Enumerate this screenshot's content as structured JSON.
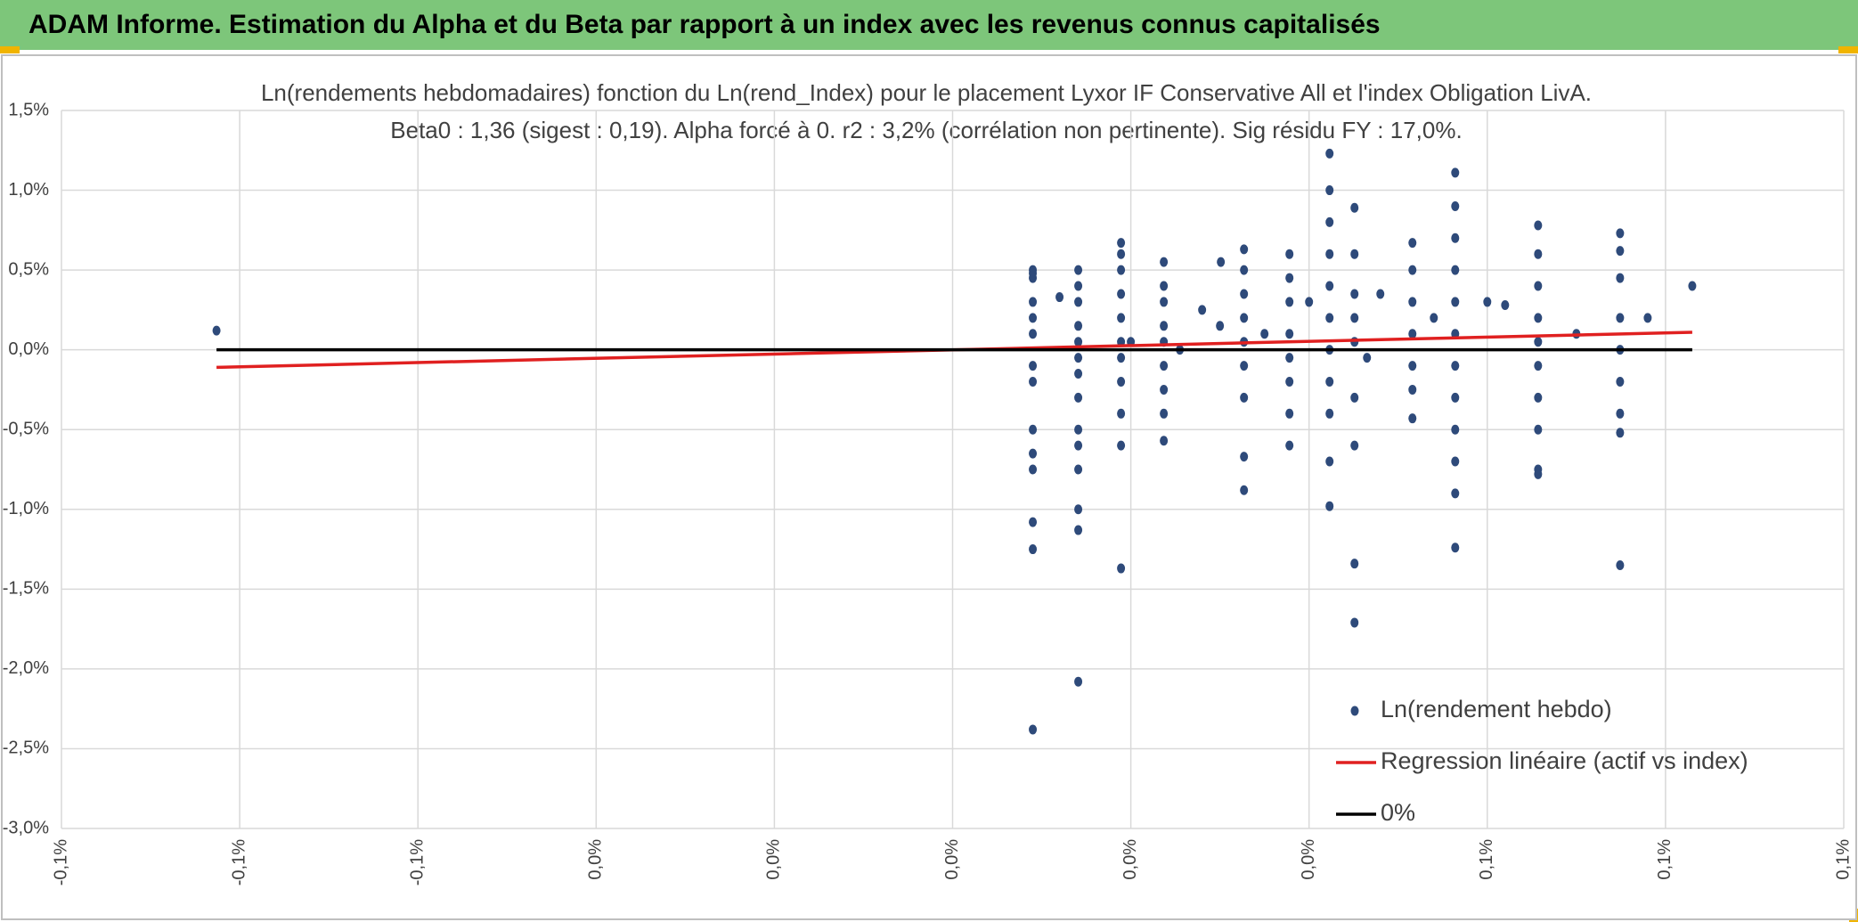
{
  "header": {
    "title": "ADAM Informe. Estimation du Alpha et du Beta par rapport à un index avec les revenus connus capitalisés"
  },
  "chart_data": {
    "type": "scatter",
    "title": "Ln(rendements hebdomadaires) fonction du Ln(rend_Index) pour le placement Lyxor IF Conservative All et l'index Obligation LivA.",
    "subtitle": "Beta0 : 1,36 (sigest : 0,19). Alpha forcé à 0. r2 : 3,2% (corrélation non pertinente). Sig résidu FY : 17,0%.",
    "xlim": [
      -0.1,
      0.1
    ],
    "xticks": [
      {
        "value": -0.1,
        "label": "-0,1%"
      },
      {
        "value": -0.08,
        "label": "-0,1%"
      },
      {
        "value": -0.06,
        "label": "-0,1%"
      },
      {
        "value": -0.04,
        "label": "0,0%"
      },
      {
        "value": -0.02,
        "label": "0,0%"
      },
      {
        "value": 0,
        "label": "0,0%"
      },
      {
        "value": 0.02,
        "label": "0,0%"
      },
      {
        "value": 0.04,
        "label": "0,0%"
      },
      {
        "value": 0.06,
        "label": "0,1%"
      },
      {
        "value": 0.08,
        "label": "0,1%"
      },
      {
        "value": 0.1,
        "label": "0,1%"
      }
    ],
    "ylim": [
      -3,
      1.5
    ],
    "yticks": [
      {
        "value": 1.5,
        "label": "1,5%"
      },
      {
        "value": 1,
        "label": "1,0%"
      },
      {
        "value": 0.5,
        "label": "0,5%"
      },
      {
        "value": 0,
        "label": "0,0%"
      },
      {
        "value": -0.5,
        "label": "-0,5%"
      },
      {
        "value": -1,
        "label": "-1,0%"
      },
      {
        "value": -1.5,
        "label": "-1,5%"
      },
      {
        "value": -2,
        "label": "-2,0%"
      },
      {
        "value": -2.5,
        "label": "-2,5%"
      },
      {
        "value": -3,
        "label": "-3,0%"
      }
    ],
    "grid": true,
    "legend": "bottom-right",
    "series": [
      {
        "name": "Ln(rendement hebdo)",
        "color": "#2e4a7a",
        "style": "markers",
        "x": [
          -0.0826,
          0.009,
          0.009,
          0.009,
          0.009,
          0.009,
          0.009,
          0.009,
          0.009,
          0.009,
          0.009,
          0.009,
          0.009,
          0.009,
          0.009,
          0.0141,
          0.0141,
          0.0141,
          0.0141,
          0.0141,
          0.0141,
          0.0141,
          0.0141,
          0.0141,
          0.0141,
          0.0141,
          0.0141,
          0.0141,
          0.0141,
          0.0189,
          0.0189,
          0.0189,
          0.0189,
          0.0189,
          0.0189,
          0.0189,
          0.0189,
          0.0189,
          0.0189,
          0.0189,
          0.0237,
          0.0237,
          0.0237,
          0.0237,
          0.0237,
          0.0237,
          0.0237,
          0.0237,
          0.0237,
          0.0327,
          0.0327,
          0.0327,
          0.0327,
          0.0327,
          0.0327,
          0.0327,
          0.0327,
          0.0327,
          0.0378,
          0.0378,
          0.0378,
          0.0378,
          0.0378,
          0.0378,
          0.0378,
          0.0378,
          0.0423,
          0.0423,
          0.0423,
          0.0423,
          0.0423,
          0.0423,
          0.0423,
          0.0423,
          0.0423,
          0.0423,
          0.0423,
          0.0451,
          0.0451,
          0.0451,
          0.0451,
          0.0451,
          0.0451,
          0.0451,
          0.0451,
          0.0451,
          0.0516,
          0.0516,
          0.0516,
          0.0516,
          0.0516,
          0.0516,
          0.0516,
          0.0564,
          0.0564,
          0.0564,
          0.0564,
          0.0564,
          0.0564,
          0.0564,
          0.0564,
          0.0564,
          0.0564,
          0.0564,
          0.0564,
          0.0657,
          0.0657,
          0.0657,
          0.0657,
          0.0657,
          0.0657,
          0.0657,
          0.0657,
          0.0657,
          0.0657,
          0.0749,
          0.0749,
          0.0749,
          0.0749,
          0.0749,
          0.0749,
          0.0749,
          0.0749,
          0.0749,
          0.083,
          0.012,
          0.02,
          0.028,
          0.03,
          0.035,
          0.04,
          0.048,
          0.054,
          0.06,
          0.062,
          0.07,
          0.078,
          0.0465,
          0.0255,
          0.0301
        ],
        "values": [
          0.12,
          0.5,
          0.45,
          0.3,
          0.2,
          0.1,
          -0.1,
          -0.2,
          -0.5,
          -0.65,
          -0.75,
          -1.08,
          -1.25,
          -2.38,
          0.48,
          0.5,
          0.4,
          0.3,
          0.15,
          0.05,
          -0.05,
          -0.15,
          -0.3,
          -0.5,
          -0.6,
          -0.75,
          -1.0,
          -1.13,
          -2.08,
          0.67,
          0.6,
          0.5,
          0.35,
          0.2,
          0.05,
          -0.05,
          -0.2,
          -0.4,
          -0.6,
          -1.37,
          0.55,
          0.4,
          0.3,
          0.15,
          0.05,
          -0.1,
          -0.25,
          -0.4,
          -0.57,
          0.63,
          0.5,
          0.35,
          0.2,
          0.05,
          -0.1,
          -0.3,
          -0.67,
          -0.88,
          0.6,
          0.45,
          0.3,
          0.1,
          -0.05,
          -0.2,
          -0.4,
          -0.6,
          1.23,
          1.0,
          0.8,
          0.6,
          0.4,
          0.2,
          0.0,
          -0.2,
          -0.4,
          -0.7,
          -0.98,
          0.89,
          0.6,
          0.35,
          0.2,
          0.05,
          -0.3,
          -0.6,
          -1.34,
          -1.71,
          0.67,
          0.5,
          0.3,
          0.1,
          -0.1,
          -0.25,
          -0.43,
          1.11,
          0.9,
          0.7,
          0.5,
          0.3,
          0.1,
          -0.1,
          -0.3,
          -0.5,
          -0.7,
          -0.9,
          -1.24,
          0.78,
          0.6,
          0.4,
          0.2,
          0.05,
          -0.1,
          -0.3,
          -0.5,
          -0.75,
          -0.78,
          0.73,
          0.62,
          0.45,
          0.2,
          0.0,
          -0.2,
          -0.4,
          -0.52,
          -1.35,
          0.4,
          0.33,
          0.05,
          0.25,
          0.15,
          0.1,
          0.3,
          0.35,
          0.2,
          0.3,
          0.28,
          0.1,
          0.2,
          -0.05,
          0.0,
          0.55
        ]
      },
      {
        "name": "Regression linéaire (actif vs index)",
        "color": "#e02020",
        "style": "line",
        "x": [
          -0.0826,
          0.083
        ],
        "values": [
          -0.11,
          0.11
        ]
      },
      {
        "name": "0%",
        "color": "#000000",
        "style": "line",
        "x": [
          -0.0826,
          0.083
        ],
        "values": [
          0,
          0
        ]
      }
    ]
  }
}
